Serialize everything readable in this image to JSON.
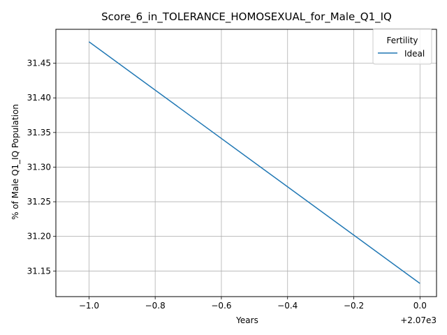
{
  "chart_data": {
    "type": "line",
    "title": "Score_6_in_TOLERANCE_HOMOSEXUAL_for_Male_Q1_IQ",
    "xlabel": "Years",
    "ylabel": "% of Male Q1_IQ Population",
    "x_offset_label": "+2.07e3",
    "xlim": [
      -1.1,
      0.05
    ],
    "ylim": [
      31.113,
      31.499
    ],
    "x_ticks": [
      -1.0,
      -0.8,
      -0.6,
      -0.4,
      -0.2,
      0.0
    ],
    "x_tick_labels": [
      "−1.0",
      "−0.8",
      "−0.6",
      "−0.4",
      "−0.2",
      "0.0"
    ],
    "y_ticks": [
      31.15,
      31.2,
      31.25,
      31.3,
      31.35,
      31.4,
      31.45
    ],
    "y_tick_labels": [
      "31.15",
      "31.20",
      "31.25",
      "31.30",
      "31.35",
      "31.40",
      "31.45"
    ],
    "grid": true,
    "legend": {
      "title": "Fertility",
      "position": "top-right"
    },
    "series": [
      {
        "name": "Ideal",
        "color": "#1f77b4",
        "x": [
          -1.0,
          0.0
        ],
        "y": [
          31.481,
          31.132
        ]
      }
    ]
  }
}
